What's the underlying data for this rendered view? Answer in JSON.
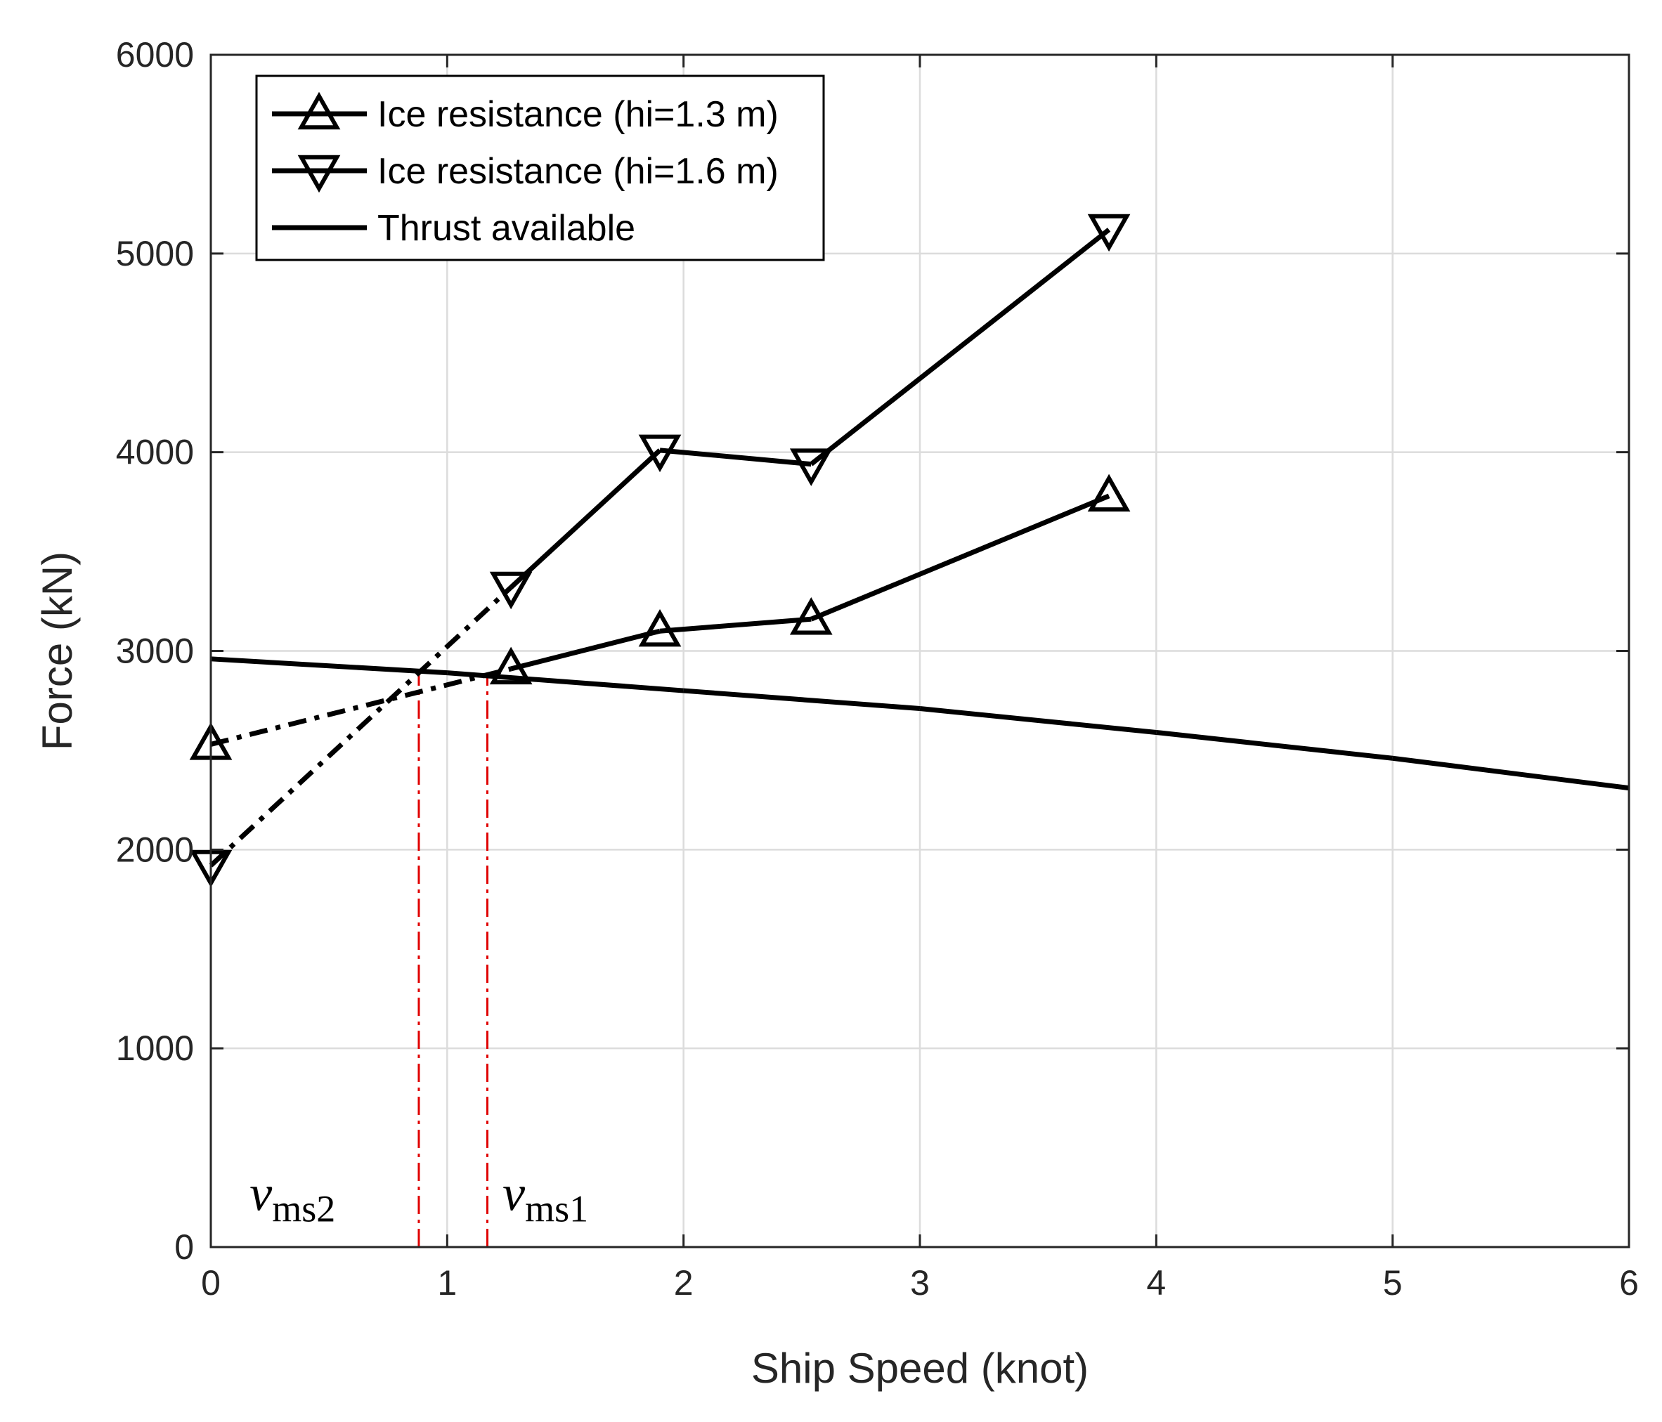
{
  "chart_data": {
    "type": "line",
    "title": "",
    "xlabel": "Ship Speed (knot)",
    "ylabel": "Force (kN)",
    "xlim": [
      0,
      6
    ],
    "ylim": [
      0,
      6000
    ],
    "xticks": [
      0,
      1,
      2,
      3,
      4,
      5,
      6
    ],
    "yticks": [
      0,
      1000,
      2000,
      3000,
      4000,
      5000,
      6000
    ],
    "grid": true,
    "legend_position": "top-left",
    "series": [
      {
        "name": "Ice resistance (hi=1.3 m)",
        "marker": "triangle-up",
        "color": "#000000",
        "x": [
          0,
          1.27,
          1.9,
          2.54,
          3.8
        ],
        "y": [
          2530,
          2910,
          3100,
          3160,
          3780
        ],
        "extrapolated_segment": [
          0,
          1
        ]
      },
      {
        "name": "Ice resistance (hi=1.6 m)",
        "marker": "triangle-down",
        "color": "#000000",
        "x": [
          0,
          1.27,
          1.9,
          2.54,
          3.8
        ],
        "y": [
          1920,
          3320,
          4010,
          3940,
          5120
        ],
        "extrapolated_segment": [
          0,
          1
        ]
      },
      {
        "name": "Thrust available",
        "marker": "none",
        "color": "#000000",
        "x": [
          0,
          1,
          2,
          3,
          4,
          5,
          6
        ],
        "y": [
          2960,
          2890,
          2800,
          2710,
          2590,
          2460,
          2310
        ]
      }
    ],
    "reference_lines": [
      {
        "x": 0.88,
        "y_top": 2890,
        "color": "#e00000",
        "style": "dash-dot"
      },
      {
        "x": 1.17,
        "y_top": 2870,
        "color": "#e00000",
        "style": "dash-dot"
      }
    ],
    "annotations": [
      {
        "main": "v",
        "sub": "ms2",
        "x": 0.2,
        "y": 250
      },
      {
        "main": "v",
        "sub": "ms1",
        "x": 1.27,
        "y": 250
      }
    ]
  }
}
